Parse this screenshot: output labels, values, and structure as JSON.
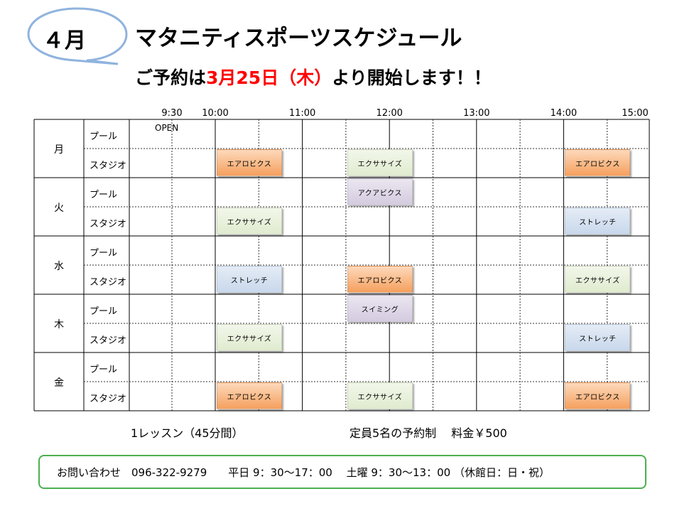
{
  "header": {
    "month": "４月",
    "title": "マタニティスポーツスケジュール",
    "subtitle_prefix": "ご予約は",
    "subtitle_date": "3月25日（木）",
    "subtitle_suffix": "より開始します！！"
  },
  "timeline": {
    "times": [
      "9:30",
      "10:00",
      "11:00",
      "12:00",
      "13:00",
      "14:00",
      "15:00"
    ],
    "open_label": "OPEN"
  },
  "schedule": {
    "room_labels": {
      "pool": "プール",
      "studio": "スタジオ"
    },
    "days": [
      {
        "day": "月",
        "pool": [],
        "studio": [
          {
            "name": "エアロビクス",
            "type": "aerobics",
            "start": "10:00"
          },
          {
            "name": "エクササイズ",
            "type": "exercise",
            "start": "11:30"
          },
          {
            "name": "エアロビクス",
            "type": "aerobics",
            "start": "14:00"
          }
        ]
      },
      {
        "day": "火",
        "pool": [
          {
            "name": "アクアビクス",
            "type": "aqua",
            "start": "11:30"
          }
        ],
        "studio": [
          {
            "name": "エクササイズ",
            "type": "exercise",
            "start": "10:00"
          },
          {
            "name": "ストレッチ",
            "type": "stretch",
            "start": "14:00"
          }
        ]
      },
      {
        "day": "水",
        "pool": [],
        "studio": [
          {
            "name": "ストレッチ",
            "type": "stretch",
            "start": "10:00"
          },
          {
            "name": "エアロビクス",
            "type": "aerobics",
            "start": "11:30"
          },
          {
            "name": "エクササイズ",
            "type": "exercise",
            "start": "14:00"
          }
        ]
      },
      {
        "day": "木",
        "pool": [
          {
            "name": "スイミング",
            "type": "swim",
            "start": "11:30"
          }
        ],
        "studio": [
          {
            "name": "エクササイズ",
            "type": "exercise",
            "start": "10:00"
          },
          {
            "name": "ストレッチ",
            "type": "stretch",
            "start": "14:00"
          }
        ]
      },
      {
        "day": "金",
        "pool": [],
        "studio": [
          {
            "name": "エアロビクス",
            "type": "aerobics",
            "start": "10:00"
          },
          {
            "name": "エクササイズ",
            "type": "exercise",
            "start": "11:30"
          },
          {
            "name": "エアロビクス",
            "type": "aerobics",
            "start": "14:00"
          }
        ]
      }
    ]
  },
  "info": {
    "lesson_length": "1レッスン（45分間）",
    "capacity_price": "定員5名の予約制　 料金￥500"
  },
  "contact": {
    "text": "お問い合わせ　096-322-9279　　平日  9：30～17：00　 土曜  9：30～13：00 （休館日：日・祝）"
  },
  "colors": {
    "aerobics": "#f5a05e",
    "exercise": "#e0ebcf",
    "aqua": "#d4cbe0",
    "stretch": "#c9d8ec",
    "swim": "#d4cbe0",
    "contact_border": "#4caf50",
    "highlight_red": "#ff0000",
    "bubble_border": "#8fb3de"
  }
}
